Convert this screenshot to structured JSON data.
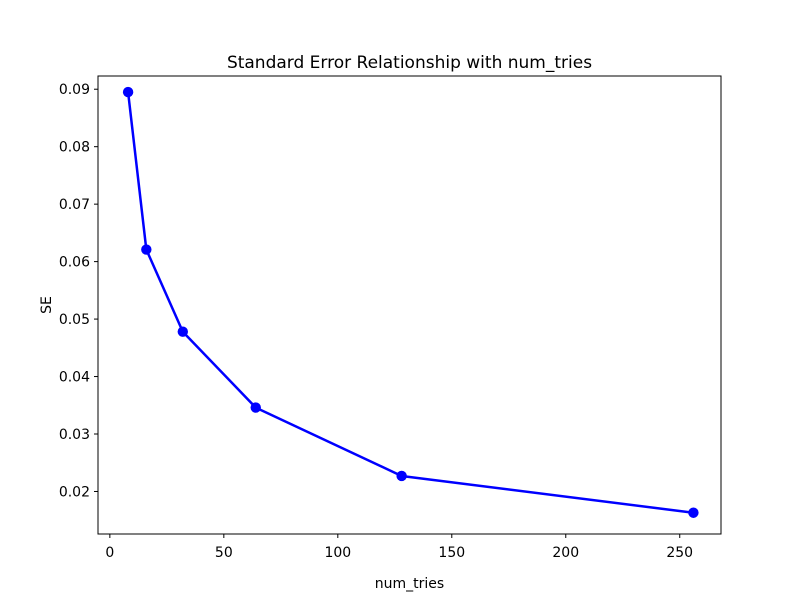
{
  "figure": {
    "background": "#ffffff"
  },
  "chart_data": {
    "type": "line",
    "title": "Standard Error Relationship with num_tries",
    "xlabel": "num_tries",
    "ylabel": "SE",
    "series": [
      {
        "name": "SE",
        "x": [
          8,
          16,
          32,
          64,
          128,
          256
        ],
        "y": [
          0.0895,
          0.0621,
          0.0478,
          0.0346,
          0.0227,
          0.0163
        ],
        "color": "#0000ff",
        "marker": "circle",
        "line_style": "solid"
      }
    ],
    "xlim": [
      -5.2,
      268.1
    ],
    "ylim": [
      0.0126,
      0.0923
    ],
    "x_tick_values": [
      0,
      50,
      100,
      150,
      200,
      250
    ],
    "x_tick_labels": [
      "0",
      "50",
      "100",
      "150",
      "200",
      "250"
    ],
    "y_tick_values": [
      0.02,
      0.03,
      0.04,
      0.05,
      0.06,
      0.07,
      0.08,
      0.09
    ],
    "y_tick_labels": [
      "0.02",
      "0.03",
      "0.04",
      "0.05",
      "0.06",
      "0.07",
      "0.08",
      "0.09"
    ],
    "grid": false,
    "legend": null,
    "frame_color": "#000000",
    "text_color": "#000000"
  }
}
